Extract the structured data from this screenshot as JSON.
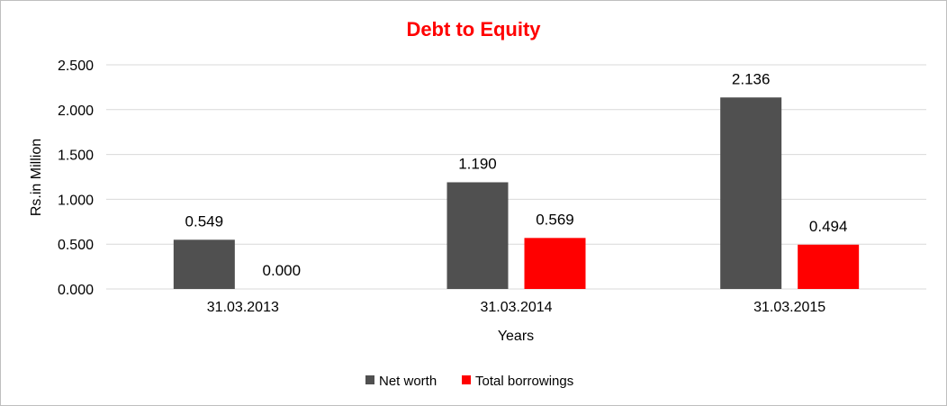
{
  "chart_data": {
    "type": "bar",
    "title": "Debt to Equity",
    "xlabel": "Years",
    "ylabel": "Rs.in Million",
    "categories": [
      "31.03.2013",
      "31.03.2014",
      "31.03.2015"
    ],
    "series": [
      {
        "name": "Net worth",
        "color": "#505050",
        "values": [
          0.549,
          1.19,
          2.136
        ],
        "labels": [
          "0.549",
          "1.190",
          "2.136"
        ]
      },
      {
        "name": "Total borrowings",
        "color": "#ff0000",
        "values": [
          0.0,
          0.569,
          0.494
        ],
        "labels": [
          "0.000",
          "0.569",
          "0.494"
        ]
      }
    ],
    "ylim": [
      0,
      2.5
    ],
    "yticks": [
      "0.000",
      "0.500",
      "1.000",
      "1.500",
      "2.000",
      "2.500"
    ],
    "grid": true,
    "legend_position": "bottom"
  }
}
